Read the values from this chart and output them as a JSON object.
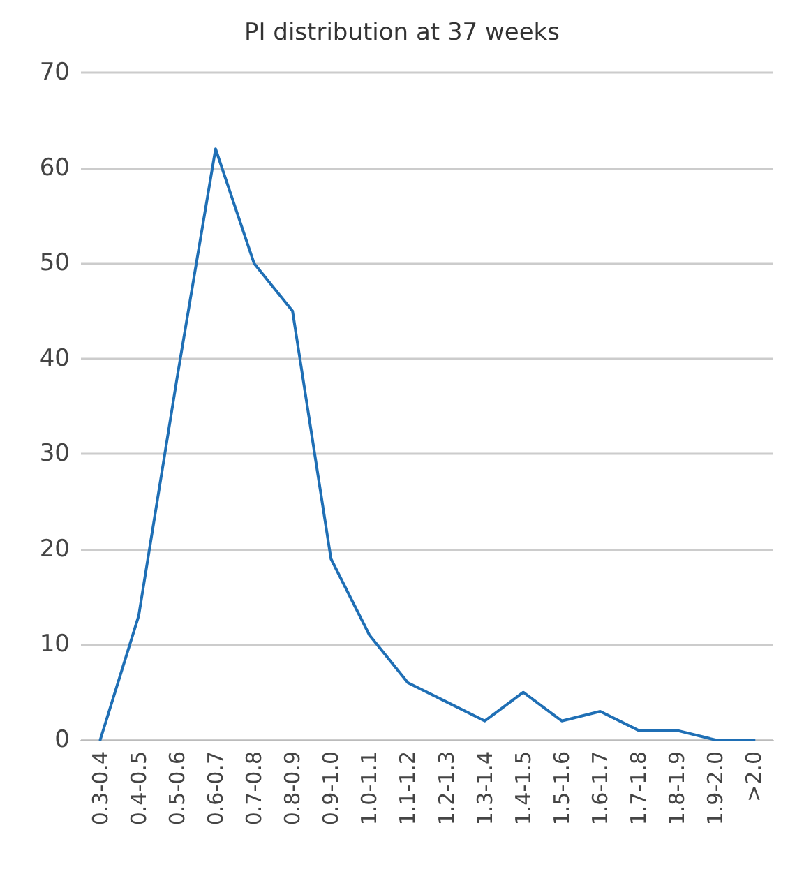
{
  "chart_data": {
    "type": "line",
    "title": "PI distribution at 37 weeks",
    "categories": [
      "0.3-0.4",
      "0.4-0.5",
      "0.5-0.6",
      "0.6-0.7",
      "0.7-0.8",
      "0.8-0.9",
      "0.9-1.0",
      "1.0-1.1",
      "1.1-1.2",
      "1.2-1.3",
      "1.3-1.4",
      "1.4-1.5",
      "1.5-1.6",
      "1.6-1.7",
      "1.7-1.8",
      "1.8-1.9",
      "1.9-2.0",
      ">2.0"
    ],
    "series": [
      {
        "color": "#1f6fb5",
        "values": [
          0,
          13,
          38,
          62,
          50,
          45,
          19,
          11,
          6,
          4,
          2,
          5,
          2,
          3,
          1,
          1,
          0,
          0
        ]
      }
    ],
    "ylim": [
      0,
      70
    ],
    "yticks": [
      0,
      10,
      20,
      30,
      40,
      50,
      60,
      70
    ],
    "grid": "y",
    "marker": "none",
    "line_style": "solid"
  }
}
